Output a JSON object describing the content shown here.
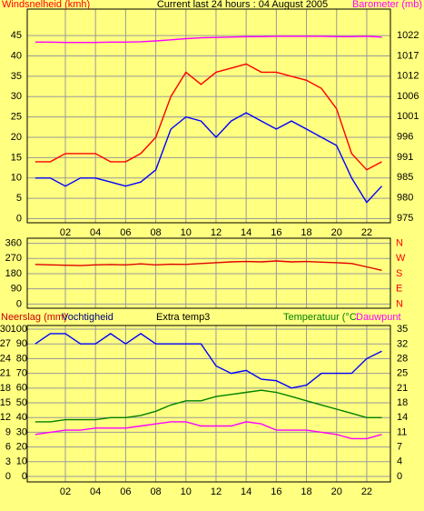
{
  "chart_data": [
    {
      "type": "line",
      "title": "Current last 24 hours : 04 August 2005",
      "ylabel": "Windsnelheid (kmh)",
      "ylabel_color": "#ff0000",
      "y2label": "Barometer (mb)",
      "y2label_color": "#ff00ff",
      "x": [
        0,
        1,
        2,
        3,
        4,
        5,
        6,
        7,
        8,
        9,
        10,
        11,
        12,
        13,
        14,
        15,
        16,
        17,
        18,
        19,
        20,
        21,
        22,
        23
      ],
      "xlim": [
        -0.53,
        23.57
      ],
      "xticks": [
        {
          "value": 2,
          "label": "02"
        },
        {
          "value": 4,
          "label": "04"
        },
        {
          "value": 6,
          "label": "06"
        },
        {
          "value": 8,
          "label": "08"
        },
        {
          "value": 10,
          "label": "10"
        },
        {
          "value": 12,
          "label": "12"
        },
        {
          "value": 14,
          "label": "14"
        },
        {
          "value": 16,
          "label": "16"
        },
        {
          "value": 18,
          "label": "18"
        },
        {
          "value": 20,
          "label": "20"
        },
        {
          "value": 22,
          "label": "22"
        }
      ],
      "ylim": [
        -1,
        51.5
      ],
      "yticks": [
        0,
        5,
        10,
        15,
        20,
        25,
        30,
        35,
        40,
        45
      ],
      "y2lim": [
        973.8,
        1028.8
      ],
      "y2ticks": [
        975,
        {
          "value": 980.22,
          "label": "980"
        },
        {
          "value": 985.44,
          "label": "985"
        },
        {
          "value": 990.67,
          "label": "991"
        },
        {
          "value": 995.89,
          "label": "996"
        },
        {
          "value": 1001.11,
          "label": "1001"
        },
        {
          "value": 1006.33,
          "label": "1006"
        },
        {
          "value": 1011.56,
          "label": "1012"
        },
        {
          "value": 1016.78,
          "label": "1017"
        },
        1022
      ],
      "grid": true,
      "series": [
        {
          "color": "#ff0000",
          "values": [
            14,
            14,
            16,
            16,
            16,
            14,
            14,
            16,
            20,
            30,
            36,
            33,
            36,
            37,
            38,
            36,
            36,
            35,
            34,
            32,
            27,
            16,
            12,
            14
          ]
        },
        {
          "color": "#0000ff",
          "values": [
            10,
            10,
            8,
            10,
            10,
            9,
            8,
            9,
            12,
            22,
            25,
            24,
            20,
            24,
            26,
            24,
            22,
            24,
            22,
            20,
            18,
            10,
            4,
            8
          ]
        },
        {
          "color": "#ff00ff",
          "axis": "y2",
          "values": [
            1020.3,
            1020.3,
            1020.2,
            1020.2,
            1020.2,
            1020.3,
            1020.3,
            1020.4,
            1020.6,
            1020.9,
            1021.2,
            1021.4,
            1021.5,
            1021.6,
            1021.7,
            1021.7,
            1021.8,
            1021.8,
            1021.8,
            1021.8,
            1021.7,
            1021.7,
            1021.8,
            1021.6
          ]
        }
      ]
    },
    {
      "type": "line",
      "x": [
        0,
        1,
        2,
        3,
        4,
        5,
        6,
        7,
        8,
        9,
        10,
        11,
        12,
        13,
        14,
        15,
        16,
        17,
        18,
        19,
        20,
        21,
        22,
        23
      ],
      "xlim": [
        -0.53,
        23.57
      ],
      "ylim": [
        -25,
        390
      ],
      "yticks": [
        0,
        90,
        180,
        270,
        360
      ],
      "y2ticks": [
        {
          "value": 0,
          "label": "N"
        },
        {
          "value": 90,
          "label": "E"
        },
        {
          "value": 180,
          "label": "S"
        },
        {
          "value": 270,
          "label": "W"
        },
        {
          "value": 360,
          "label": "N"
        }
      ],
      "y2label_color": "#ff0000",
      "grid": true,
      "series": [
        {
          "color": "#e00000",
          "values": [
            235,
            232,
            230,
            228,
            232,
            234,
            232,
            238,
            232,
            236,
            235,
            240,
            245,
            250,
            252,
            250,
            255,
            250,
            252,
            248,
            245,
            240,
            220,
            200
          ]
        }
      ]
    },
    {
      "type": "line",
      "ylabel": "Neerslag (mm)",
      "ylabel_color": "#cc0000",
      "extra_label": "Extra temp3",
      "x": [
        0,
        1,
        2,
        3,
        4,
        5,
        6,
        7,
        8,
        9,
        10,
        11,
        12,
        13,
        14,
        15,
        16,
        17,
        18,
        19,
        20,
        21,
        22,
        23
      ],
      "xlim": [
        -0.53,
        23.57
      ],
      "xticks": [
        {
          "value": 2,
          "label": "02"
        },
        {
          "value": 4,
          "label": "04"
        },
        {
          "value": 6,
          "label": "06"
        },
        {
          "value": 8,
          "label": "08"
        },
        {
          "value": 10,
          "label": "10"
        },
        {
          "value": 12,
          "label": "12"
        },
        {
          "value": 14,
          "label": "14"
        },
        {
          "value": 16,
          "label": "16"
        },
        {
          "value": 18,
          "label": "18"
        },
        {
          "value": 20,
          "label": "20"
        },
        {
          "value": 22,
          "label": "22"
        }
      ],
      "rainlim": [
        -1.1,
        30.75
      ],
      "rainticks": [
        0,
        3,
        6,
        9,
        12,
        15,
        18,
        21,
        24,
        27,
        30
      ],
      "ylim": [
        -3.7,
        102.5
      ],
      "yticks": [
        0,
        10,
        20,
        30,
        40,
        50,
        60,
        70,
        80,
        90,
        100
      ],
      "y2lim": [
        -1.3,
        35.9
      ],
      "y2ticks": [
        0,
        {
          "value": 3.5,
          "label": "4"
        },
        7,
        {
          "value": 10.5,
          "label": "11"
        },
        14,
        {
          "value": 17.5,
          "label": "18"
        },
        21,
        {
          "value": 24.5,
          "label": "25"
        },
        28,
        {
          "value": 31.5,
          "label": "32"
        },
        35
      ],
      "grid": true,
      "series": [
        {
          "name": "Vochtigheid",
          "color": "#0000ff",
          "values": [
            90,
            97,
            97,
            90,
            90,
            97,
            90,
            97,
            90,
            90,
            90,
            90,
            75,
            70,
            72,
            66,
            65,
            60,
            62,
            70,
            70,
            70,
            80,
            85
          ]
        },
        {
          "name": "Temperatuur (°C",
          "color": "#008000",
          "axis": "y2",
          "values": [
            13,
            13,
            13.5,
            13.5,
            13.5,
            14,
            14,
            14.5,
            15.5,
            17,
            18,
            18,
            19,
            19.5,
            20,
            20.5,
            20,
            19,
            18,
            17,
            16,
            15,
            14,
            14
          ]
        },
        {
          "name": "Dauwpunt",
          "color": "#ff00ff",
          "axis": "y2",
          "values": [
            10,
            10.5,
            11,
            11,
            11.5,
            11.5,
            11.5,
            12,
            12.5,
            13,
            13,
            12,
            12,
            12,
            13,
            12.5,
            11,
            11,
            11,
            10.5,
            10,
            9,
            9,
            10
          ]
        }
      ]
    }
  ]
}
